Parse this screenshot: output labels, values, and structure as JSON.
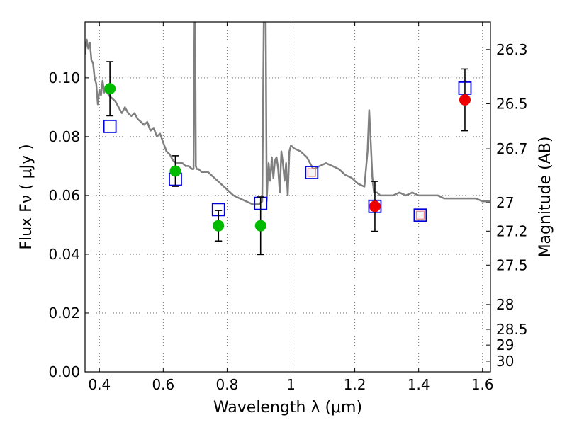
{
  "chart_data": {
    "type": "scatter",
    "title": "",
    "xlabel": "Wavelength  λ (μm)",
    "ylabel": "Flux  Fν  ( μJy )",
    "y2label": "Magnitude (AB)",
    "xlim": [
      0.355,
      1.625
    ],
    "ylim": [
      0.0,
      0.119
    ],
    "grid": true,
    "x_ticks": [
      {
        "value": 0.4,
        "label": "0.4"
      },
      {
        "value": 0.6,
        "label": "0.6"
      },
      {
        "value": 0.8,
        "label": "0.8"
      },
      {
        "value": 1.0,
        "label": "1"
      },
      {
        "value": 1.2,
        "label": "1.2"
      },
      {
        "value": 1.4,
        "label": "1.4"
      },
      {
        "value": 1.6,
        "label": "1.6"
      }
    ],
    "y_ticks": [
      {
        "value": 0.0,
        "label": "0.00"
      },
      {
        "value": 0.02,
        "label": "0.02"
      },
      {
        "value": 0.04,
        "label": "0.04"
      },
      {
        "value": 0.06,
        "label": "0.06"
      },
      {
        "value": 0.08,
        "label": "0.08"
      },
      {
        "value": 0.1,
        "label": "0.10"
      }
    ],
    "y2_ticks": [
      {
        "mag": 26.3,
        "label": "26.3"
      },
      {
        "mag": 26.5,
        "label": "26.5"
      },
      {
        "mag": 26.7,
        "label": "26.7"
      },
      {
        "mag": 27.0,
        "label": "27"
      },
      {
        "mag": 27.2,
        "label": "27.2"
      },
      {
        "mag": 27.5,
        "label": "27.5"
      },
      {
        "mag": 28.0,
        "label": "28"
      },
      {
        "mag": 28.5,
        "label": "28.5"
      },
      {
        "mag": 29.0,
        "label": "29"
      },
      {
        "mag": 30.0,
        "label": "30"
      }
    ],
    "series": [
      {
        "kind": "spectrum",
        "color": "#808080",
        "x": [
          0.355,
          0.36,
          0.365,
          0.37,
          0.375,
          0.38,
          0.385,
          0.39,
          0.395,
          0.4,
          0.405,
          0.41,
          0.415,
          0.42,
          0.425,
          0.43,
          0.44,
          0.45,
          0.46,
          0.47,
          0.48,
          0.49,
          0.5,
          0.51,
          0.52,
          0.53,
          0.54,
          0.55,
          0.56,
          0.57,
          0.58,
          0.59,
          0.6,
          0.61,
          0.62,
          0.63,
          0.64,
          0.65,
          0.66,
          0.67,
          0.68,
          0.69,
          0.695,
          0.698,
          0.7,
          0.702,
          0.705,
          0.71,
          0.72,
          0.73,
          0.74,
          0.75,
          0.76,
          0.78,
          0.8,
          0.82,
          0.84,
          0.86,
          0.88,
          0.9,
          0.91,
          0.915,
          0.918,
          0.921,
          0.924,
          0.927,
          0.93,
          0.935,
          0.94,
          0.945,
          0.95,
          0.955,
          0.96,
          0.965,
          0.97,
          0.975,
          0.98,
          0.985,
          0.99,
          0.995,
          1.0,
          1.01,
          1.03,
          1.05,
          1.07,
          1.09,
          1.11,
          1.13,
          1.15,
          1.17,
          1.19,
          1.21,
          1.23,
          1.24,
          1.245,
          1.25,
          1.255,
          1.26,
          1.27,
          1.28,
          1.3,
          1.32,
          1.34,
          1.36,
          1.38,
          1.4,
          1.42,
          1.44,
          1.46,
          1.48,
          1.5,
          1.52,
          1.54,
          1.56,
          1.58,
          1.6,
          1.625
        ],
        "y": [
          0.108,
          0.113,
          0.11,
          0.112,
          0.106,
          0.105,
          0.1,
          0.098,
          0.091,
          0.096,
          0.094,
          0.099,
          0.095,
          0.096,
          0.095,
          0.094,
          0.093,
          0.092,
          0.09,
          0.088,
          0.09,
          0.088,
          0.087,
          0.088,
          0.086,
          0.085,
          0.084,
          0.085,
          0.082,
          0.083,
          0.08,
          0.081,
          0.078,
          0.075,
          0.074,
          0.072,
          0.071,
          0.071,
          0.071,
          0.07,
          0.07,
          0.069,
          0.069,
          0.12,
          0.12,
          0.07,
          0.069,
          0.069,
          0.068,
          0.068,
          0.068,
          0.067,
          0.066,
          0.064,
          0.062,
          0.06,
          0.059,
          0.058,
          0.057,
          0.057,
          0.058,
          0.12,
          0.12,
          0.12,
          0.058,
          0.065,
          0.071,
          0.065,
          0.073,
          0.066,
          0.072,
          0.073,
          0.069,
          0.061,
          0.075,
          0.071,
          0.065,
          0.071,
          0.06,
          0.075,
          0.077,
          0.076,
          0.075,
          0.073,
          0.069,
          0.07,
          0.071,
          0.07,
          0.069,
          0.067,
          0.066,
          0.064,
          0.063,
          0.075,
          0.089,
          0.078,
          0.066,
          0.061,
          0.061,
          0.06,
          0.06,
          0.06,
          0.061,
          0.06,
          0.061,
          0.06,
          0.06,
          0.06,
          0.06,
          0.059,
          0.059,
          0.059,
          0.059,
          0.059,
          0.059,
          0.058,
          0.058
        ]
      },
      {
        "kind": "model",
        "marker": "open-square",
        "color": "#0000dd",
        "x": [
          0.433,
          0.638,
          0.773,
          0.905,
          1.065,
          1.263,
          1.405,
          1.545
        ],
        "y": [
          0.0835,
          0.0655,
          0.0552,
          0.0573,
          0.0678,
          0.0563,
          0.0533,
          0.0965
        ]
      },
      {
        "kind": "observed",
        "marker": "circle",
        "color": "#00bb00",
        "x": [
          0.433,
          0.638,
          0.773,
          0.905
        ],
        "y": [
          0.0963,
          0.0683,
          0.0497,
          0.0497
        ],
        "err": [
          0.0092,
          0.0052,
          0.0052,
          0.0098
        ]
      },
      {
        "kind": "observed",
        "marker": "circle",
        "color": "#ee0000",
        "x": [
          1.263,
          1.545
        ],
        "y": [
          0.0563,
          0.0925
        ],
        "err": [
          0.0085,
          0.0105
        ]
      },
      {
        "kind": "upper-limit",
        "marker": "small-square",
        "color": "#ee8888",
        "x": [
          1.065,
          1.405
        ],
        "y": [
          0.0678,
          0.0533
        ]
      }
    ]
  }
}
